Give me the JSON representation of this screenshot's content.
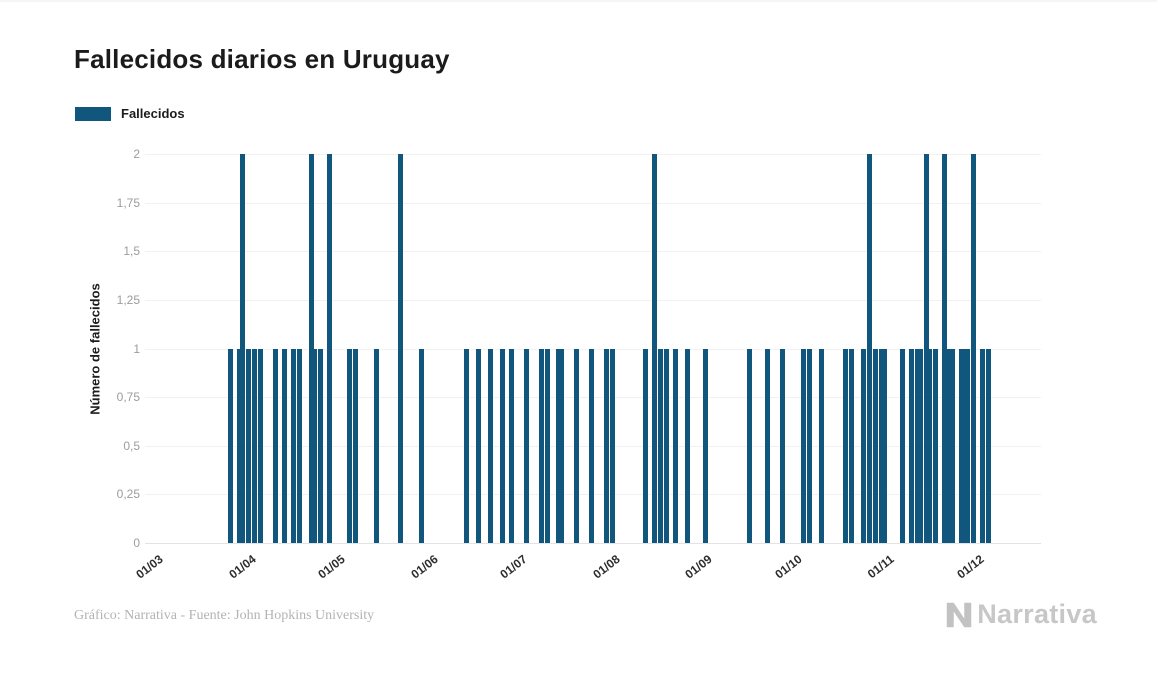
{
  "header": {
    "title": "Fallecidos diarios en Uruguay"
  },
  "legend": {
    "label": "Fallecidos",
    "color": "#11577d"
  },
  "footer": {
    "credit": "Gráfico: Narrativa - Fuente: John Hopkins University",
    "logo_text": "Narrativa",
    "logo_color": "#c7c7c7"
  },
  "chart_data": {
    "type": "bar",
    "title": "Fallecidos diarios en Uruguay",
    "xlabel": "",
    "ylabel": "Número de fallecidos",
    "series_name": "Fallecidos",
    "bar_color": "#11577d",
    "grid": true,
    "legend_position": "top-left",
    "ylim": [
      0,
      2
    ],
    "yticks": [
      {
        "value": 0,
        "label": "0"
      },
      {
        "value": 0.25,
        "label": "0,25"
      },
      {
        "value": 0.5,
        "label": "0,5"
      },
      {
        "value": 0.75,
        "label": "0,75"
      },
      {
        "value": 1,
        "label": "1"
      },
      {
        "value": 1.25,
        "label": "1,25"
      },
      {
        "value": 1.5,
        "label": "1,5"
      },
      {
        "value": 1.75,
        "label": "1,75"
      },
      {
        "value": 2,
        "label": "2"
      }
    ],
    "xlim_days": [
      0,
      298
    ],
    "xticks": [
      {
        "day": 0,
        "label": "01/03"
      },
      {
        "day": 31,
        "label": "01/04"
      },
      {
        "day": 61,
        "label": "01/05"
      },
      {
        "day": 92,
        "label": "01/06"
      },
      {
        "day": 122,
        "label": "01/07"
      },
      {
        "day": 153,
        "label": "01/08"
      },
      {
        "day": 184,
        "label": "01/09"
      },
      {
        "day": 214,
        "label": "01/10"
      },
      {
        "day": 245,
        "label": "01/11"
      },
      {
        "day": 275,
        "label": "01/12"
      }
    ],
    "bars": [
      {
        "day": 27,
        "value": 1,
        "date": "28/03"
      },
      {
        "day": 30,
        "value": 1,
        "date": "31/03"
      },
      {
        "day": 31,
        "value": 2,
        "date": "01/04"
      },
      {
        "day": 33,
        "value": 1,
        "date": "03/04"
      },
      {
        "day": 35,
        "value": 1,
        "date": "05/04"
      },
      {
        "day": 37,
        "value": 1,
        "date": "07/04"
      },
      {
        "day": 42,
        "value": 1,
        "date": "12/04"
      },
      {
        "day": 45,
        "value": 1,
        "date": "15/04"
      },
      {
        "day": 48,
        "value": 1,
        "date": "18/04"
      },
      {
        "day": 50,
        "value": 1,
        "date": "20/04"
      },
      {
        "day": 54,
        "value": 2,
        "date": "24/04"
      },
      {
        "day": 55,
        "value": 1,
        "date": "25/04"
      },
      {
        "day": 57,
        "value": 1,
        "date": "27/04"
      },
      {
        "day": 60,
        "value": 2,
        "date": "30/04"
      },
      {
        "day": 67,
        "value": 1,
        "date": "07/05"
      },
      {
        "day": 69,
        "value": 1,
        "date": "09/05"
      },
      {
        "day": 76,
        "value": 1,
        "date": "16/05"
      },
      {
        "day": 84,
        "value": 2,
        "date": "24/05"
      },
      {
        "day": 91,
        "value": 1,
        "date": "31/05"
      },
      {
        "day": 106,
        "value": 1,
        "date": "15/06"
      },
      {
        "day": 110,
        "value": 1,
        "date": "19/06"
      },
      {
        "day": 114,
        "value": 1,
        "date": "23/06"
      },
      {
        "day": 118,
        "value": 1,
        "date": "27/06"
      },
      {
        "day": 121,
        "value": 1,
        "date": "30/06"
      },
      {
        "day": 126,
        "value": 1,
        "date": "05/07"
      },
      {
        "day": 131,
        "value": 1,
        "date": "10/07"
      },
      {
        "day": 133,
        "value": 1,
        "date": "12/07"
      },
      {
        "day": 137,
        "value": 1,
        "date": "16/07"
      },
      {
        "day": 138,
        "value": 1,
        "date": "17/07"
      },
      {
        "day": 143,
        "value": 1,
        "date": "22/07"
      },
      {
        "day": 148,
        "value": 1,
        "date": "27/07"
      },
      {
        "day": 153,
        "value": 1,
        "date": "01/08"
      },
      {
        "day": 155,
        "value": 1,
        "date": "03/08"
      },
      {
        "day": 166,
        "value": 1,
        "date": "14/08"
      },
      {
        "day": 169,
        "value": 2,
        "date": "17/08"
      },
      {
        "day": 171,
        "value": 1,
        "date": "19/08"
      },
      {
        "day": 173,
        "value": 1,
        "date": "21/08"
      },
      {
        "day": 176,
        "value": 1,
        "date": "24/08"
      },
      {
        "day": 180,
        "value": 1,
        "date": "28/08"
      },
      {
        "day": 186,
        "value": 1,
        "date": "03/09"
      },
      {
        "day": 201,
        "value": 1,
        "date": "18/09"
      },
      {
        "day": 207,
        "value": 1,
        "date": "24/09"
      },
      {
        "day": 212,
        "value": 1,
        "date": "29/09"
      },
      {
        "day": 219,
        "value": 1,
        "date": "06/10"
      },
      {
        "day": 221,
        "value": 1,
        "date": "08/10"
      },
      {
        "day": 225,
        "value": 1,
        "date": "12/10"
      },
      {
        "day": 233,
        "value": 1,
        "date": "20/10"
      },
      {
        "day": 235,
        "value": 1,
        "date": "22/10"
      },
      {
        "day": 239,
        "value": 1,
        "date": "26/10"
      },
      {
        "day": 241,
        "value": 2,
        "date": "28/10"
      },
      {
        "day": 243,
        "value": 1,
        "date": "30/10"
      },
      {
        "day": 245,
        "value": 1,
        "date": "01/11"
      },
      {
        "day": 246,
        "value": 1,
        "date": "02/11"
      },
      {
        "day": 252,
        "value": 1,
        "date": "08/11"
      },
      {
        "day": 255,
        "value": 1,
        "date": "11/11"
      },
      {
        "day": 257,
        "value": 1,
        "date": "13/11"
      },
      {
        "day": 258,
        "value": 1,
        "date": "14/11"
      },
      {
        "day": 260,
        "value": 2,
        "date": "16/11"
      },
      {
        "day": 261,
        "value": 1,
        "date": "17/11"
      },
      {
        "day": 263,
        "value": 1,
        "date": "19/11"
      },
      {
        "day": 266,
        "value": 2,
        "date": "22/11"
      },
      {
        "day": 268,
        "value": 1,
        "date": "24/11"
      },
      {
        "day": 269,
        "value": 1,
        "date": "25/11"
      },
      {
        "day": 272,
        "value": 1,
        "date": "28/11"
      },
      {
        "day": 273,
        "value": 1,
        "date": "29/11"
      },
      {
        "day": 274,
        "value": 1,
        "date": "30/11"
      },
      {
        "day": 276,
        "value": 2,
        "date": "02/12"
      },
      {
        "day": 279,
        "value": 1,
        "date": "05/12"
      },
      {
        "day": 281,
        "value": 1,
        "date": "07/12"
      }
    ]
  }
}
